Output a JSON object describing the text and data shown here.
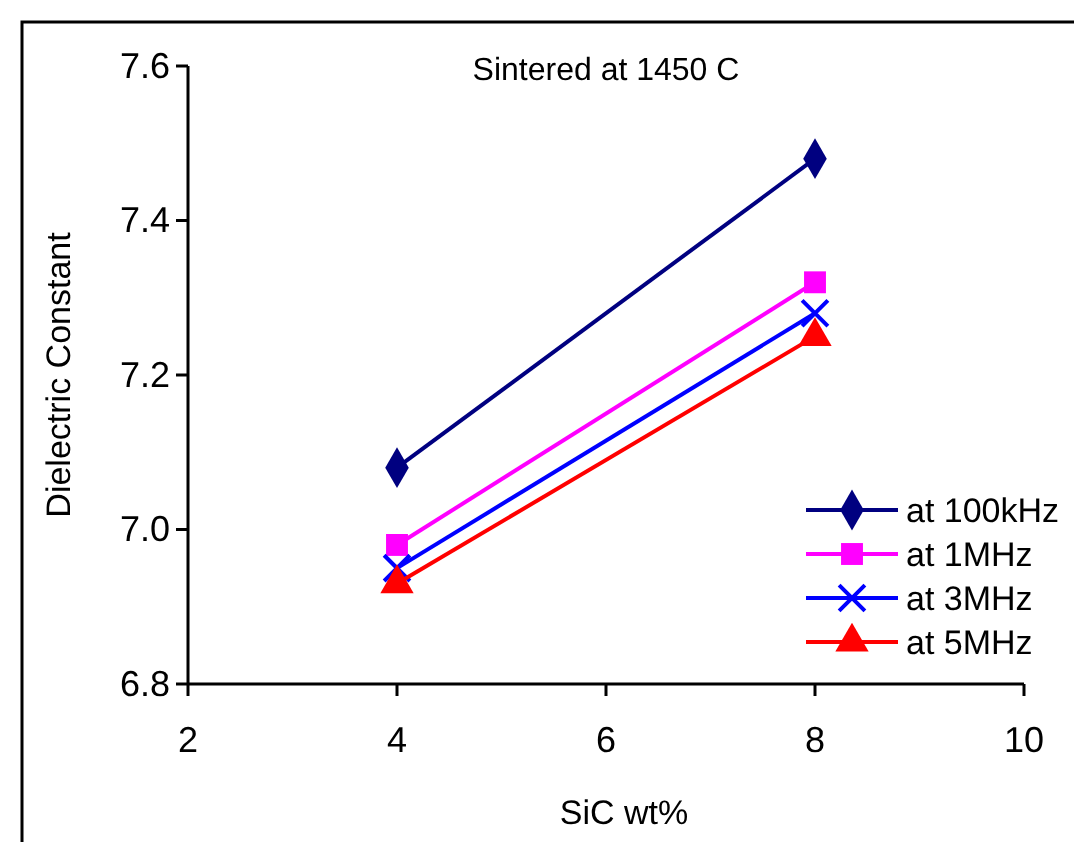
{
  "chart_data": {
    "type": "line",
    "title": "Sintered at 1450 C",
    "xlabel": "SiC wt%",
    "ylabel": "Dielectric Constant",
    "x": [
      4,
      8
    ],
    "series": [
      {
        "name": "at 100kHz",
        "color": "#000080",
        "marker": "diamond",
        "values": [
          7.08,
          7.48
        ]
      },
      {
        "name": "at 1MHz",
        "color": "#ff00ff",
        "marker": "square",
        "values": [
          6.98,
          7.32
        ]
      },
      {
        "name": "at 3MHz",
        "color": "#0000ff",
        "marker": "cross",
        "values": [
          6.95,
          7.28
        ]
      },
      {
        "name": "at 5MHz",
        "color": "#ff0000",
        "marker": "triangle",
        "values": [
          6.93,
          7.25
        ]
      }
    ],
    "xlim": [
      2,
      10
    ],
    "xticks": [
      2,
      4,
      6,
      8,
      10
    ],
    "ylim": [
      6.8,
      7.6
    ],
    "yticks": [
      {
        "value": 6.8,
        "label": "6.8"
      },
      {
        "value": 7.0,
        "label": "7.0"
      },
      {
        "value": 7.2,
        "label": "7.2"
      },
      {
        "value": 7.4,
        "label": "7.4"
      },
      {
        "value": 7.6,
        "label": "7.6"
      }
    ],
    "legend": "bottom right",
    "grid": false
  }
}
